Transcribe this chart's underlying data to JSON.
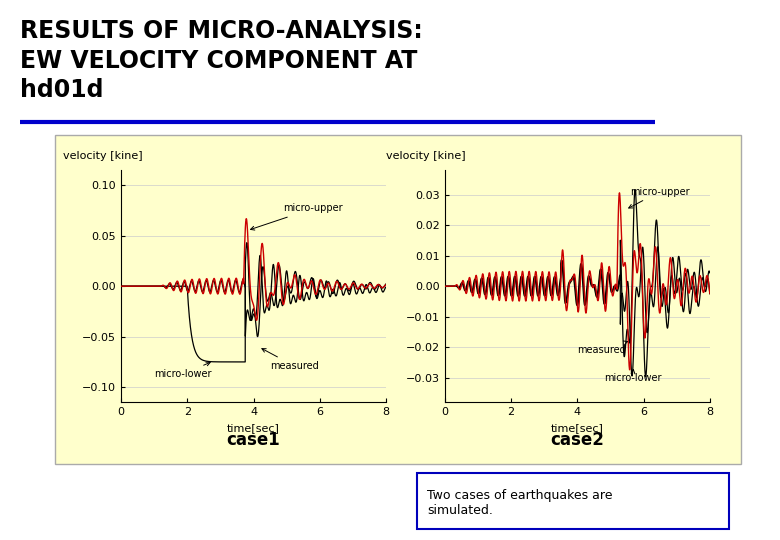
{
  "title_line1": "RESULTS OF MICRO-ANALYSIS:",
  "title_line2": "EW VELOCITY COMPONENT AT",
  "title_line3": "hd01d",
  "separator_color": "#0000CC",
  "bg_panel_color": "#FFFFCC",
  "bg_page_color": "#FFFFFF",
  "case1_label": "case1",
  "case2_label": "case2",
  "ylabel": "velocity [kine]",
  "xlabel": "time[sec]",
  "case1_ylim": [
    -0.115,
    0.115
  ],
  "case1_yticks": [
    -0.1,
    -0.05,
    0,
    0.05,
    0.1
  ],
  "case2_ylim": [
    -0.038,
    0.038
  ],
  "case2_yticks": [
    -0.03,
    -0.02,
    -0.01,
    0,
    0.01,
    0.02,
    0.03
  ],
  "xlim": [
    0,
    8
  ],
  "xticks": [
    0,
    2,
    4,
    6,
    8
  ],
  "annotation_box_color": "#FFFFFF",
  "annotation_box_edge": "#0000BB",
  "annotation_text": "Two cases of earthquakes are\nsimulated.",
  "micro_upper_color": "#CC0000",
  "measured_color": "#000000",
  "micro_lower_color": "#000000",
  "title_fontsize": 17,
  "label_fontsize": 8,
  "tick_fontsize": 8
}
